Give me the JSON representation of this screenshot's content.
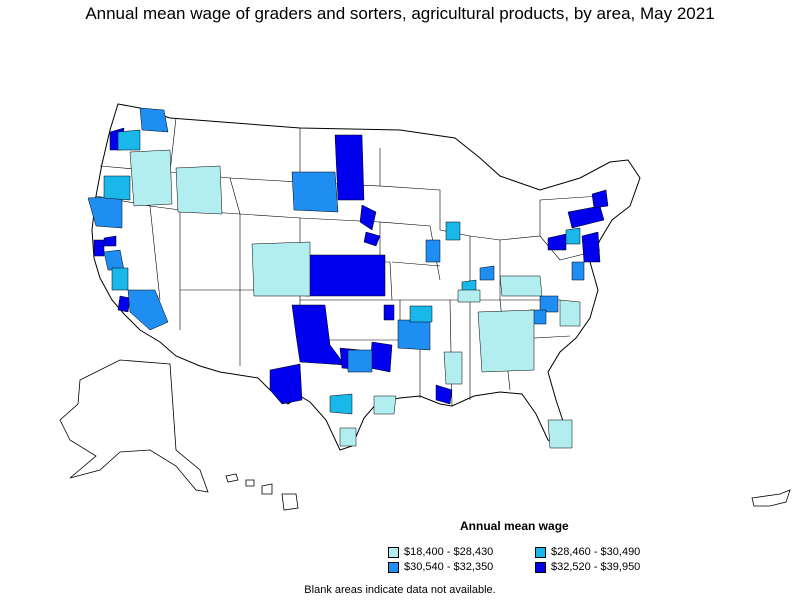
{
  "title": "Annual mean wage of graders and sorters, agricultural products, by area, May 2021",
  "legend": {
    "title": "Annual mean wage",
    "items": [
      {
        "label": "$18,400 - $28,430",
        "color": "#b2eef0"
      },
      {
        "label": "$28,460 - $30,490",
        "color": "#1ab7ea"
      },
      {
        "label": "$30,540 - $32,350",
        "color": "#1f8ef3"
      },
      {
        "label": "$32,520 - $39,950",
        "color": "#0000ee"
      }
    ]
  },
  "footnote": "Blank areas indicate data not available.",
  "colors": {
    "outline": "#000000",
    "no_data": "#ffffff"
  }
}
